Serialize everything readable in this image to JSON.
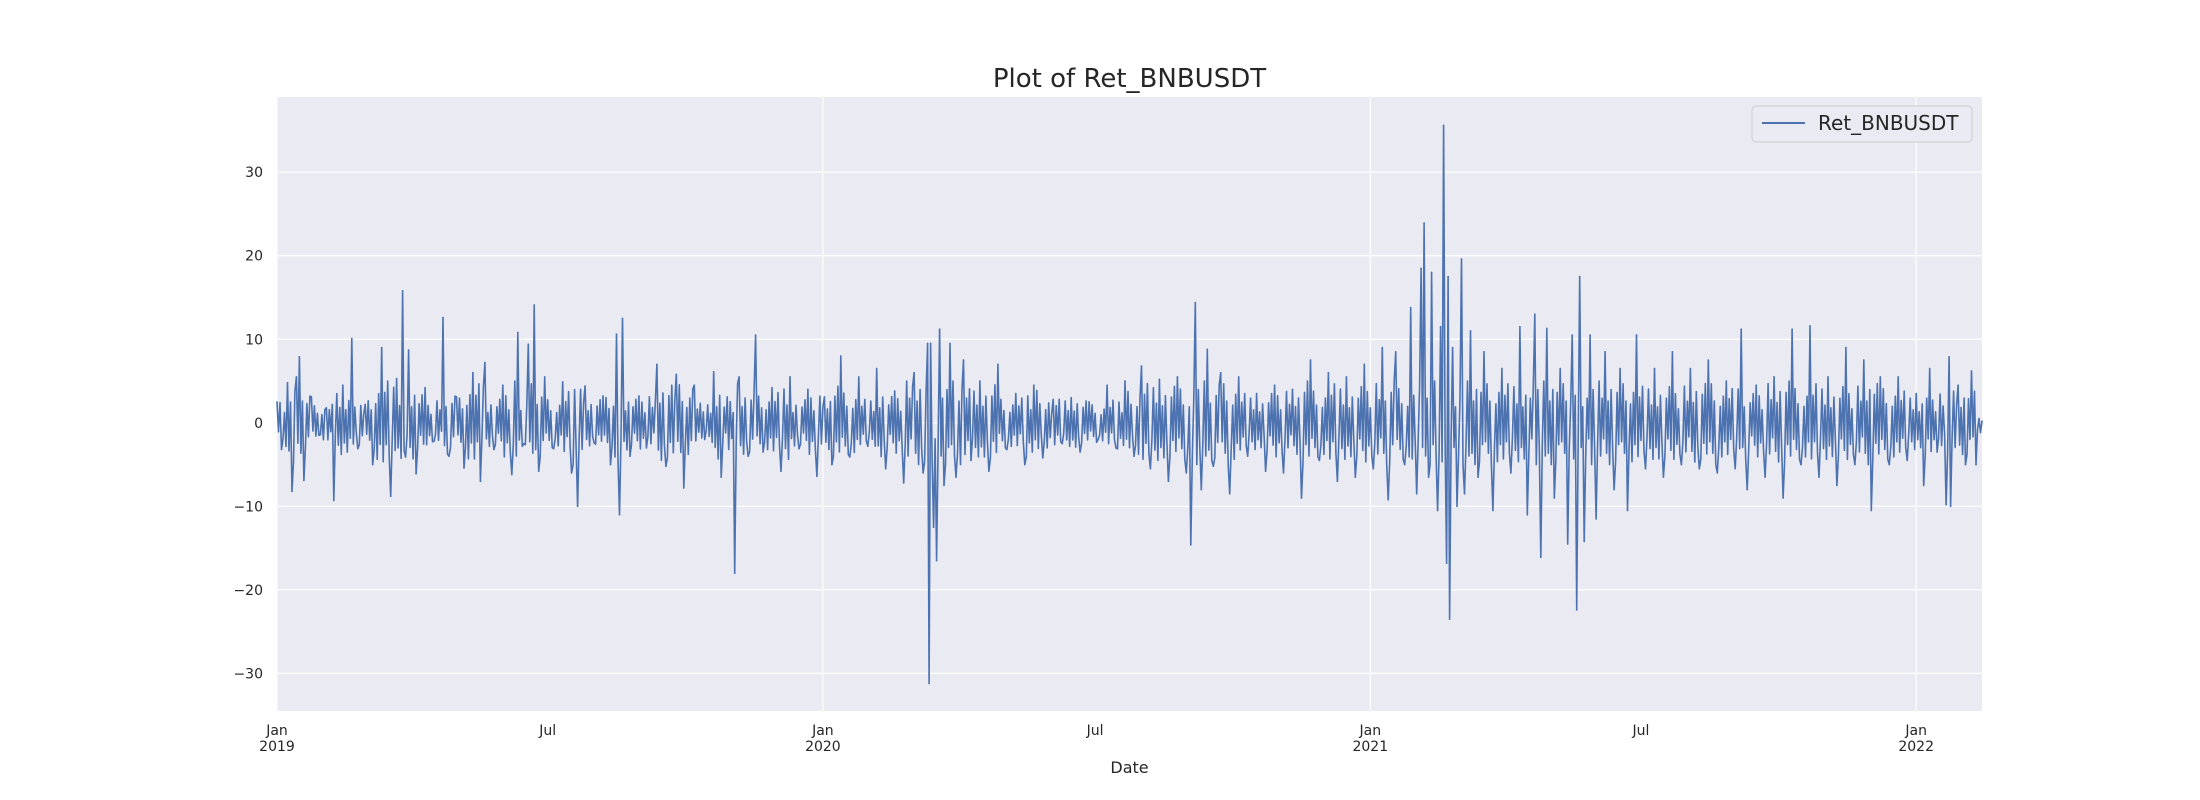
{
  "chart_data": {
    "type": "line",
    "title": "Plot of Ret_BNBUSDT",
    "xlabel": "Date",
    "ylabel": "",
    "x_range": [
      "2019-01-01",
      "2022-02-14"
    ],
    "ylim": [
      -34.5,
      39
    ],
    "yticks": [
      -30,
      -20,
      -10,
      0,
      10,
      20,
      30
    ],
    "xticks": [
      {
        "date": "2019-01-01",
        "label": "Jan",
        "year": "2019"
      },
      {
        "date": "2019-07-01",
        "label": "Jul",
        "year": ""
      },
      {
        "date": "2020-01-01",
        "label": "Jan",
        "year": "2020"
      },
      {
        "date": "2020-07-01",
        "label": "Jul",
        "year": ""
      },
      {
        "date": "2021-01-01",
        "label": "Jan",
        "year": "2021"
      },
      {
        "date": "2021-07-01",
        "label": "Jul",
        "year": ""
      },
      {
        "date": "2022-01-01",
        "label": "Jan",
        "year": "2022"
      }
    ],
    "grid": true,
    "legend_position": "top-right",
    "colors": {
      "background": "#eaeaf2",
      "grid": "#ffffff",
      "line": "#4c72b0"
    },
    "series": [
      {
        "name": "Ret_BNBUSDT",
        "points": [
          [
            "2019-01-01",
            2.5
          ],
          [
            "2019-01-04",
            -3.2
          ],
          [
            "2019-01-08",
            4.8
          ],
          [
            "2019-01-11",
            -8.2
          ],
          [
            "2019-01-14",
            5.5
          ],
          [
            "2019-01-16",
            7.9
          ],
          [
            "2019-01-19",
            -6.9
          ],
          [
            "2019-01-24",
            3.1
          ],
          [
            "2019-01-29",
            -1.5
          ],
          [
            "2019-02-03",
            1.8
          ],
          [
            "2019-02-08",
            -9.3
          ],
          [
            "2019-02-14",
            4.5
          ],
          [
            "2019-02-20",
            10.1
          ],
          [
            "2019-02-24",
            -3.1
          ],
          [
            "2019-03-01",
            2.2
          ],
          [
            "2019-03-06",
            -5.0
          ],
          [
            "2019-03-12",
            9.0
          ],
          [
            "2019-03-18",
            -8.8
          ],
          [
            "2019-03-22",
            5.3
          ],
          [
            "2019-03-26",
            15.8
          ],
          [
            "2019-03-28",
            -4.1
          ],
          [
            "2019-03-30",
            8.7
          ],
          [
            "2019-04-04",
            -6.1
          ],
          [
            "2019-04-10",
            4.2
          ],
          [
            "2019-04-16",
            -2.2
          ],
          [
            "2019-04-22",
            12.6
          ],
          [
            "2019-04-26",
            -4.0
          ],
          [
            "2019-05-01",
            3.1
          ],
          [
            "2019-05-06",
            -5.4
          ],
          [
            "2019-05-12",
            6.0
          ],
          [
            "2019-05-17",
            -7.0
          ],
          [
            "2019-05-20",
            7.2
          ],
          [
            "2019-05-26",
            -3.2
          ],
          [
            "2019-06-01",
            4.5
          ],
          [
            "2019-06-07",
            -6.2
          ],
          [
            "2019-06-11",
            10.8
          ],
          [
            "2019-06-15",
            -2.5
          ],
          [
            "2019-06-18",
            9.4
          ],
          [
            "2019-06-22",
            14.1
          ],
          [
            "2019-06-25",
            -5.8
          ],
          [
            "2019-06-29",
            5.5
          ],
          [
            "2019-07-05",
            -3.1
          ],
          [
            "2019-07-11",
            4.9
          ],
          [
            "2019-07-17",
            -6.0
          ],
          [
            "2019-07-21",
            -10.0
          ],
          [
            "2019-07-26",
            4.4
          ],
          [
            "2019-08-01",
            -2.4
          ],
          [
            "2019-08-07",
            3.2
          ],
          [
            "2019-08-12",
            -5.0
          ],
          [
            "2019-08-16",
            10.6
          ],
          [
            "2019-08-18",
            -11.0
          ],
          [
            "2019-08-20",
            12.5
          ],
          [
            "2019-08-25",
            -4.0
          ],
          [
            "2019-08-31",
            3.2
          ],
          [
            "2019-09-05",
            -3.0
          ],
          [
            "2019-09-12",
            7.0
          ],
          [
            "2019-09-18",
            -5.2
          ],
          [
            "2019-09-25",
            5.8
          ],
          [
            "2019-09-30",
            -7.8
          ],
          [
            "2019-10-07",
            4.5
          ],
          [
            "2019-10-14",
            -2.0
          ],
          [
            "2019-10-20",
            6.1
          ],
          [
            "2019-10-25",
            -6.5
          ],
          [
            "2019-10-29",
            3.1
          ],
          [
            "2019-11-03",
            -18.0
          ],
          [
            "2019-11-06",
            5.5
          ],
          [
            "2019-11-12",
            -4.0
          ],
          [
            "2019-11-17",
            10.5
          ],
          [
            "2019-11-22",
            -3.5
          ],
          [
            "2019-11-28",
            4.2
          ],
          [
            "2019-12-04",
            -5.8
          ],
          [
            "2019-12-10",
            5.5
          ],
          [
            "2019-12-16",
            -3.1
          ],
          [
            "2019-12-22",
            4.0
          ],
          [
            "2019-12-28",
            -6.4
          ],
          [
            "2020-01-02",
            3.1
          ],
          [
            "2020-01-07",
            -5.0
          ],
          [
            "2020-01-13",
            8.0
          ],
          [
            "2020-01-19",
            -4.1
          ],
          [
            "2020-01-25",
            5.5
          ],
          [
            "2020-01-31",
            -2.8
          ],
          [
            "2020-02-06",
            6.5
          ],
          [
            "2020-02-12",
            -5.5
          ],
          [
            "2020-02-18",
            3.8
          ],
          [
            "2020-02-24",
            -7.2
          ],
          [
            "2020-03-02",
            6.0
          ],
          [
            "2020-03-08",
            -6.0
          ],
          [
            "2020-03-11",
            9.5
          ],
          [
            "2020-03-12",
            -31.2
          ],
          [
            "2020-03-13",
            9.5
          ],
          [
            "2020-03-15",
            -12.5
          ],
          [
            "2020-03-17",
            -16.5
          ],
          [
            "2020-03-19",
            11.2
          ],
          [
            "2020-03-22",
            -7.5
          ],
          [
            "2020-03-26",
            9.5
          ],
          [
            "2020-03-30",
            -6.5
          ],
          [
            "2020-04-04",
            7.5
          ],
          [
            "2020-04-09",
            -4.5
          ],
          [
            "2020-04-15",
            5.0
          ],
          [
            "2020-04-21",
            -5.8
          ],
          [
            "2020-04-27",
            7.0
          ],
          [
            "2020-05-03",
            -3.2
          ],
          [
            "2020-05-09",
            3.5
          ],
          [
            "2020-05-15",
            -5.0
          ],
          [
            "2020-05-21",
            4.5
          ],
          [
            "2020-05-27",
            -4.2
          ],
          [
            "2020-06-03",
            2.8
          ],
          [
            "2020-06-09",
            -2.5
          ],
          [
            "2020-06-15",
            3.0
          ],
          [
            "2020-06-21",
            -3.5
          ],
          [
            "2020-06-27",
            2.5
          ],
          [
            "2020-07-03",
            -2.0
          ],
          [
            "2020-07-09",
            4.5
          ],
          [
            "2020-07-15",
            -3.0
          ],
          [
            "2020-07-21",
            5.0
          ],
          [
            "2020-07-27",
            -4.0
          ],
          [
            "2020-08-01",
            6.8
          ],
          [
            "2020-08-07",
            -5.5
          ],
          [
            "2020-08-13",
            5.2
          ],
          [
            "2020-08-19",
            -7.0
          ],
          [
            "2020-08-25",
            5.5
          ],
          [
            "2020-08-31",
            -6.0
          ],
          [
            "2020-09-03",
            -14.6
          ],
          [
            "2020-09-06",
            14.4
          ],
          [
            "2020-09-10",
            -8.0
          ],
          [
            "2020-09-14",
            8.8
          ],
          [
            "2020-09-18",
            -5.2
          ],
          [
            "2020-09-23",
            6.0
          ],
          [
            "2020-09-29",
            -8.5
          ],
          [
            "2020-10-05",
            5.5
          ],
          [
            "2020-10-11",
            -4.0
          ],
          [
            "2020-10-17",
            3.5
          ],
          [
            "2020-10-23",
            -5.8
          ],
          [
            "2020-10-29",
            4.5
          ],
          [
            "2020-11-04",
            -6.0
          ],
          [
            "2020-11-10",
            4.0
          ],
          [
            "2020-11-16",
            -9.0
          ],
          [
            "2020-11-22",
            7.5
          ],
          [
            "2020-11-28",
            -4.5
          ],
          [
            "2020-12-04",
            6.0
          ],
          [
            "2020-12-10",
            -7.0
          ],
          [
            "2020-12-16",
            5.5
          ],
          [
            "2020-12-22",
            -6.5
          ],
          [
            "2020-12-28",
            7.0
          ],
          [
            "2021-01-03",
            -5.5
          ],
          [
            "2021-01-09",
            9.0
          ],
          [
            "2021-01-13",
            -9.2
          ],
          [
            "2021-01-18",
            8.5
          ],
          [
            "2021-01-24",
            -5.0
          ],
          [
            "2021-01-28",
            13.8
          ],
          [
            "2021-02-01",
            -8.5
          ],
          [
            "2021-02-04",
            18.5
          ],
          [
            "2021-02-06",
            23.9
          ],
          [
            "2021-02-09",
            -6.5
          ],
          [
            "2021-02-11",
            18.0
          ],
          [
            "2021-02-15",
            -10.5
          ],
          [
            "2021-02-17",
            11.5
          ],
          [
            "2021-02-19",
            35.6
          ],
          [
            "2021-02-21",
            -16.8
          ],
          [
            "2021-02-22",
            17.5
          ],
          [
            "2021-02-23",
            -23.5
          ],
          [
            "2021-02-25",
            9.0
          ],
          [
            "2021-02-28",
            -10.0
          ],
          [
            "2021-03-03",
            19.6
          ],
          [
            "2021-03-05",
            -8.5
          ],
          [
            "2021-03-09",
            11.0
          ],
          [
            "2021-03-14",
            -6.5
          ],
          [
            "2021-03-18",
            8.5
          ],
          [
            "2021-03-24",
            -10.5
          ],
          [
            "2021-03-30",
            6.5
          ],
          [
            "2021-04-05",
            -6.0
          ],
          [
            "2021-04-11",
            11.5
          ],
          [
            "2021-04-16",
            -11.0
          ],
          [
            "2021-04-21",
            13.0
          ],
          [
            "2021-04-25",
            -16.1
          ],
          [
            "2021-04-29",
            11.3
          ],
          [
            "2021-05-04",
            -9.0
          ],
          [
            "2021-05-08",
            6.5
          ],
          [
            "2021-05-13",
            -14.5
          ],
          [
            "2021-05-16",
            10.5
          ],
          [
            "2021-05-19",
            -22.4
          ],
          [
            "2021-05-21",
            17.5
          ],
          [
            "2021-05-24",
            -14.2
          ],
          [
            "2021-05-28",
            10.5
          ],
          [
            "2021-06-01",
            -11.5
          ],
          [
            "2021-06-07",
            8.5
          ],
          [
            "2021-06-13",
            -8.0
          ],
          [
            "2021-06-17",
            6.5
          ],
          [
            "2021-06-22",
            -10.5
          ],
          [
            "2021-06-28",
            10.5
          ],
          [
            "2021-07-04",
            -5.5
          ],
          [
            "2021-07-10",
            6.5
          ],
          [
            "2021-07-16",
            -6.5
          ],
          [
            "2021-07-22",
            8.5
          ],
          [
            "2021-07-28",
            -5.0
          ],
          [
            "2021-08-03",
            6.5
          ],
          [
            "2021-08-09",
            -5.5
          ],
          [
            "2021-08-15",
            7.5
          ],
          [
            "2021-08-21",
            -6.0
          ],
          [
            "2021-08-27",
            5.0
          ],
          [
            "2021-09-02",
            -5.5
          ],
          [
            "2021-09-06",
            11.2
          ],
          [
            "2021-09-10",
            -8.0
          ],
          [
            "2021-09-16",
            4.5
          ],
          [
            "2021-09-22",
            -6.5
          ],
          [
            "2021-09-28",
            5.5
          ],
          [
            "2021-10-04",
            -9.0
          ],
          [
            "2021-10-10",
            11.2
          ],
          [
            "2021-10-16",
            -5.0
          ],
          [
            "2021-10-22",
            11.6
          ],
          [
            "2021-10-28",
            -6.5
          ],
          [
            "2021-11-03",
            5.5
          ],
          [
            "2021-11-09",
            -7.5
          ],
          [
            "2021-11-15",
            9.0
          ],
          [
            "2021-11-21",
            -5.0
          ],
          [
            "2021-11-27",
            7.5
          ],
          [
            "2021-12-02",
            -10.5
          ],
          [
            "2021-12-08",
            5.5
          ],
          [
            "2021-12-14",
            -5.0
          ],
          [
            "2021-12-20",
            5.5
          ],
          [
            "2021-12-26",
            -4.5
          ],
          [
            "2022-01-01",
            3.5
          ],
          [
            "2022-01-06",
            -7.5
          ],
          [
            "2022-01-10",
            6.5
          ],
          [
            "2022-01-15",
            -3.5
          ],
          [
            "2022-01-21",
            -9.8
          ],
          [
            "2022-01-23",
            7.9
          ],
          [
            "2022-01-24",
            -10.0
          ],
          [
            "2022-01-29",
            4.5
          ],
          [
            "2022-02-03",
            -5.0
          ],
          [
            "2022-02-07",
            6.2
          ],
          [
            "2022-02-10",
            -5.0
          ],
          [
            "2022-02-14",
            0.2
          ]
        ]
      }
    ]
  }
}
